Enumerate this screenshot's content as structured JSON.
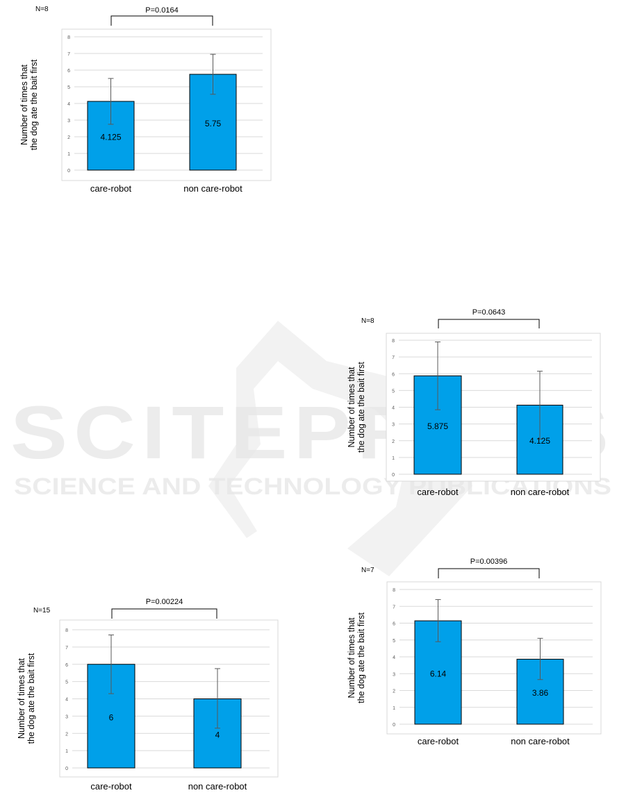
{
  "watermark": {
    "title": "SCITEPRESS",
    "subtitle": "SCIENCE AND TECHNOLOGY PUBLICATIONS"
  },
  "chart_data": [
    {
      "type": "bar",
      "n_label": "N=8",
      "p_label": "P=0.0164",
      "ylabel": "Number of times that the dog ate the bait first",
      "categories": [
        "care-robot",
        "non care-robot"
      ],
      "values": [
        4.125,
        5.75
      ],
      "value_labels": [
        "4.125",
        "5.75"
      ],
      "error_upper": [
        5.5,
        6.95
      ],
      "error_lower": [
        2.75,
        4.55
      ],
      "ylim": [
        0,
        8
      ],
      "yticks": [
        "0",
        "1",
        "2",
        "3",
        "4",
        "5",
        "6",
        "7",
        "8"
      ],
      "grid": true,
      "bar_color": "#00a0e9"
    },
    {
      "type": "bar",
      "n_label": "N=8",
      "p_label": "P=0.0643",
      "ylabel": "Number of times that the dog ate the bait first",
      "categories": [
        "care-robot",
        "non care-robot"
      ],
      "values": [
        5.875,
        4.125
      ],
      "value_labels": [
        "5.875",
        "4.125"
      ],
      "error_upper": [
        7.9,
        6.15
      ],
      "error_lower": [
        3.85,
        2.1
      ],
      "ylim": [
        0,
        8
      ],
      "yticks": [
        "0",
        "1",
        "2",
        "3",
        "4",
        "5",
        "6",
        "7",
        "8"
      ],
      "grid": true,
      "bar_color": "#00a0e9"
    },
    {
      "type": "bar",
      "n_label": "N=15",
      "p_label": "P=0.00224",
      "ylabel": "Number of times that the dog ate the bait first",
      "categories": [
        "care-robot",
        "non care-robot"
      ],
      "values": [
        6,
        4
      ],
      "value_labels": [
        "6",
        "4"
      ],
      "error_upper": [
        7.7,
        5.75
      ],
      "error_lower": [
        4.3,
        2.3
      ],
      "ylim": [
        0,
        8
      ],
      "yticks": [
        "0",
        "1",
        "2",
        "3",
        "4",
        "5",
        "6",
        "7",
        "8"
      ],
      "grid": true,
      "bar_color": "#00a0e9"
    },
    {
      "type": "bar",
      "n_label": "N=7",
      "p_label": "P=0.00396",
      "ylabel": "Number of times that the dog ate the bait first",
      "categories": [
        "care-robot",
        "non care-robot"
      ],
      "values": [
        6.14,
        3.86
      ],
      "value_labels": [
        "6.14",
        "3.86"
      ],
      "error_upper": [
        7.4,
        5.1
      ],
      "error_lower": [
        4.9,
        2.65
      ],
      "ylim": [
        0,
        8
      ],
      "yticks": [
        "0",
        "1",
        "2",
        "3",
        "4",
        "5",
        "6",
        "7",
        "8"
      ],
      "grid": true,
      "bar_color": "#00a0e9"
    }
  ]
}
